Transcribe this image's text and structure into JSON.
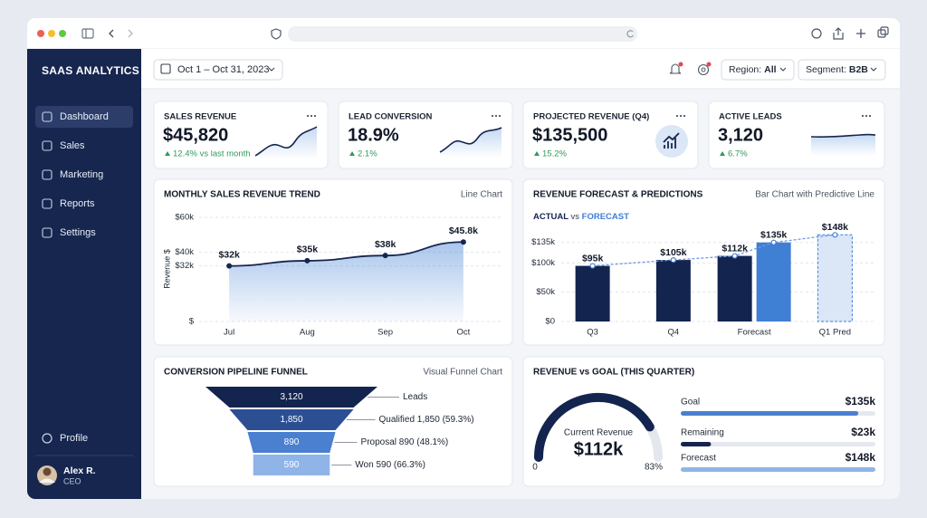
{
  "sidebar": {
    "brand": "SAAS ANALYTICS",
    "nav": [
      "Dashboard",
      "Sales",
      "Marketing",
      "Reports",
      "Settings"
    ],
    "profile": "Profile",
    "user": {
      "name": "Alex R.",
      "role": "CEO"
    }
  },
  "topbar": {
    "date_range": "Oct 1 – Oct 31, 2023",
    "filters": [
      {
        "label": "Region:",
        "value": "All"
      },
      {
        "label": "Segment:",
        "value": "B2B"
      }
    ]
  },
  "kpis": [
    {
      "title": "SALES REVENUE",
      "value": "$45,820",
      "change": "12.4% vs last month"
    },
    {
      "title": "LEAD CONVERSION",
      "value": "18.9%",
      "change": "2.1%"
    },
    {
      "title": "PROJECTED REVENUE (Q4)",
      "value": "$135,500",
      "change": "15.2%"
    },
    {
      "title": "ACTIVE LEADS",
      "value": "3,120",
      "change": "6.7%"
    }
  ],
  "chart_data": [
    {
      "type": "line",
      "title": "MONTHLY SALES REVENUE TREND",
      "subtitle": "Line Chart",
      "y_label": "Revenue $",
      "categories": [
        "Jul",
        "Aug",
        "Sep",
        "Oct"
      ],
      "values": [
        32000,
        35000,
        38000,
        45800
      ],
      "value_labels": [
        "$32k",
        "$35k",
        "$38k",
        "$45.8k"
      ],
      "color": "#16264f",
      "area": true,
      "ylim": [
        0,
        60000
      ],
      "yticks": [
        {
          "value": 0,
          "label": "$"
        },
        {
          "value": 32000,
          "label": "$32k"
        },
        {
          "value": 40000,
          "label": "$40k"
        },
        {
          "value": 60000,
          "label": "$60k"
        }
      ],
      "grid": true
    },
    {
      "type": "bar",
      "title": "REVENUE FORECAST & PREDICTIONS",
      "subtitle": "Bar Chart with Predictive Line",
      "legend_joiner": "vs",
      "categories": [
        "Q3",
        "Q4",
        "Forecast",
        "Q1 Pred"
      ],
      "series": [
        {
          "name": "ACTUAL",
          "color": "#13244f",
          "values": [
            95000,
            105000,
            112000,
            null
          ],
          "value_labels": [
            "$95k",
            "$105k",
            "$112k",
            null
          ]
        },
        {
          "name": "FORECAST",
          "color": "#3f7fd4",
          "values": [
            null,
            null,
            135000,
            148000
          ],
          "value_labels": [
            null,
            null,
            "$135k",
            "$148k"
          ],
          "colors": [
            null,
            null,
            "#3f7fd4",
            "#dbe6f7"
          ]
        }
      ],
      "trend_line": true,
      "ylim": [
        0,
        150000
      ],
      "yticks": [
        {
          "value": 0,
          "label": "$0"
        },
        {
          "value": 50000,
          "label": "$50k"
        },
        {
          "value": 100000,
          "label": "$100k"
        },
        {
          "value": 135000,
          "label": "$135k"
        }
      ],
      "grid": true
    },
    {
      "type": "funnel",
      "title": "CONVERSION PIPELINE FUNNEL",
      "subtitle": "Visual Funnel Chart",
      "values": [
        3120,
        1850,
        890,
        590
      ],
      "value_labels": [
        "3,120",
        "1,850",
        "890",
        "590"
      ],
      "labels": [
        "Leads",
        "Qualified 1,850 (59.3%)",
        "Proposal 890 (48.1%)",
        "Won 590 (66.3%)"
      ],
      "colors": [
        "#13244f",
        "#2c4f94",
        "#4a80cf",
        "#8fb5e8"
      ]
    },
    {
      "type": "gauge",
      "title": "REVENUE vs GOAL (THIS QUARTER)",
      "label": "Current Revenue",
      "value_label": "$112k",
      "min": 0,
      "percent": {
        "value": 83,
        "label": "83%"
      },
      "color": "#13244f",
      "bars": [
        {
          "name": "Goal",
          "value": 135000,
          "value_label": "$135k",
          "color": "#4a80cf"
        },
        {
          "name": "Remaining",
          "value": 23000,
          "value_label": "$23k",
          "color": "#13244f"
        },
        {
          "name": "Forecast",
          "value": 148000,
          "value_label": "$148k",
          "color": "#8fb5e8"
        }
      ]
    }
  ]
}
